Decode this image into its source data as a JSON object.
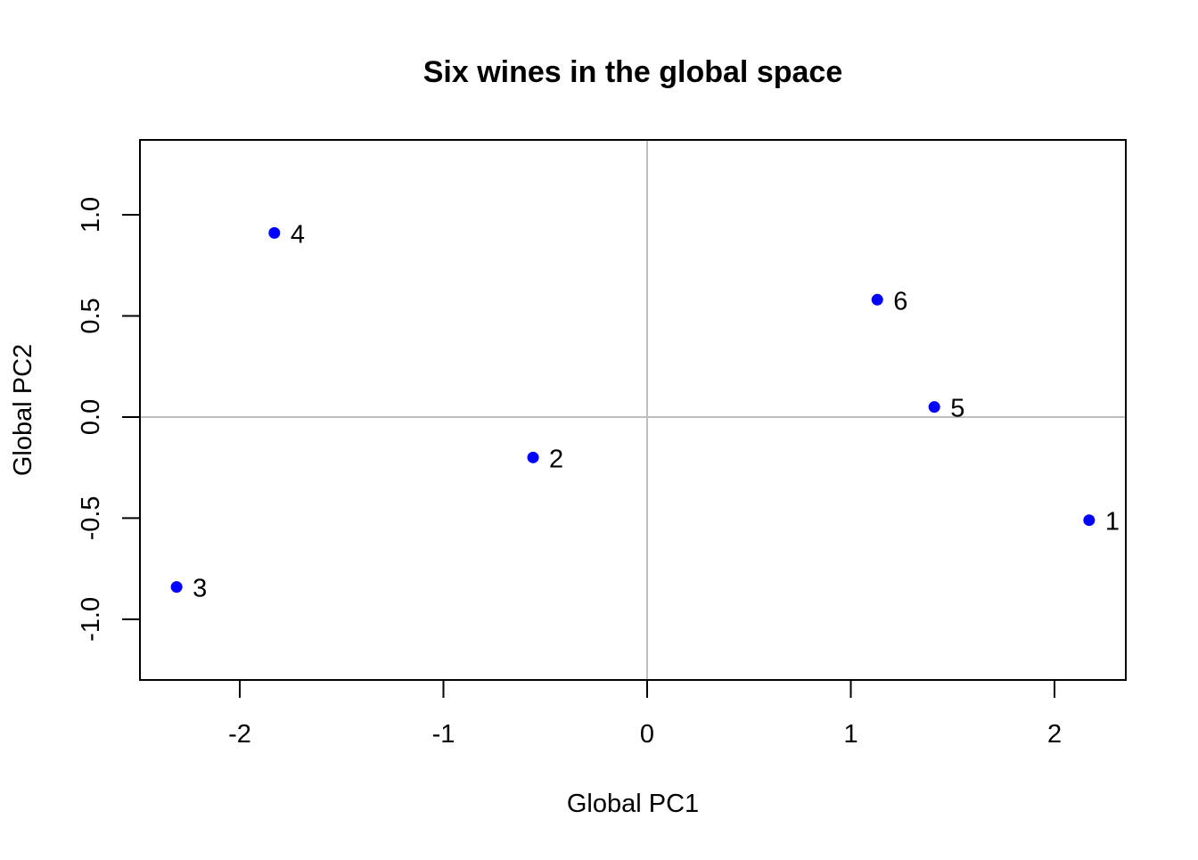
{
  "chart_data": {
    "type": "scatter",
    "title": "Six wines in the global space",
    "xlabel": "Global PC1",
    "ylabel": "Global PC2",
    "xlim": [
      -2.49,
      2.35
    ],
    "ylim": [
      -1.3,
      1.37
    ],
    "xticks": [
      -2,
      -1,
      0,
      1,
      2
    ],
    "xtick_labels": [
      "-2",
      "-1",
      "0",
      "1",
      "2"
    ],
    "yticks": [
      -1.0,
      -0.5,
      0.0,
      0.5,
      1.0
    ],
    "ytick_labels": [
      "-1.0",
      "-0.5",
      "0.0",
      "0.5",
      "1.0"
    ],
    "reference_lines": {
      "x": 0,
      "y": 0,
      "color": "#bebebe"
    },
    "grid": false,
    "point_color": "#0000ff",
    "points": [
      {
        "label": "1",
        "x": 2.17,
        "y": -0.51
      },
      {
        "label": "2",
        "x": -0.56,
        "y": -0.2
      },
      {
        "label": "3",
        "x": -2.31,
        "y": -0.84
      },
      {
        "label": "4",
        "x": -1.83,
        "y": 0.91
      },
      {
        "label": "5",
        "x": 1.41,
        "y": 0.05
      },
      {
        "label": "6",
        "x": 1.13,
        "y": 0.58
      }
    ]
  }
}
